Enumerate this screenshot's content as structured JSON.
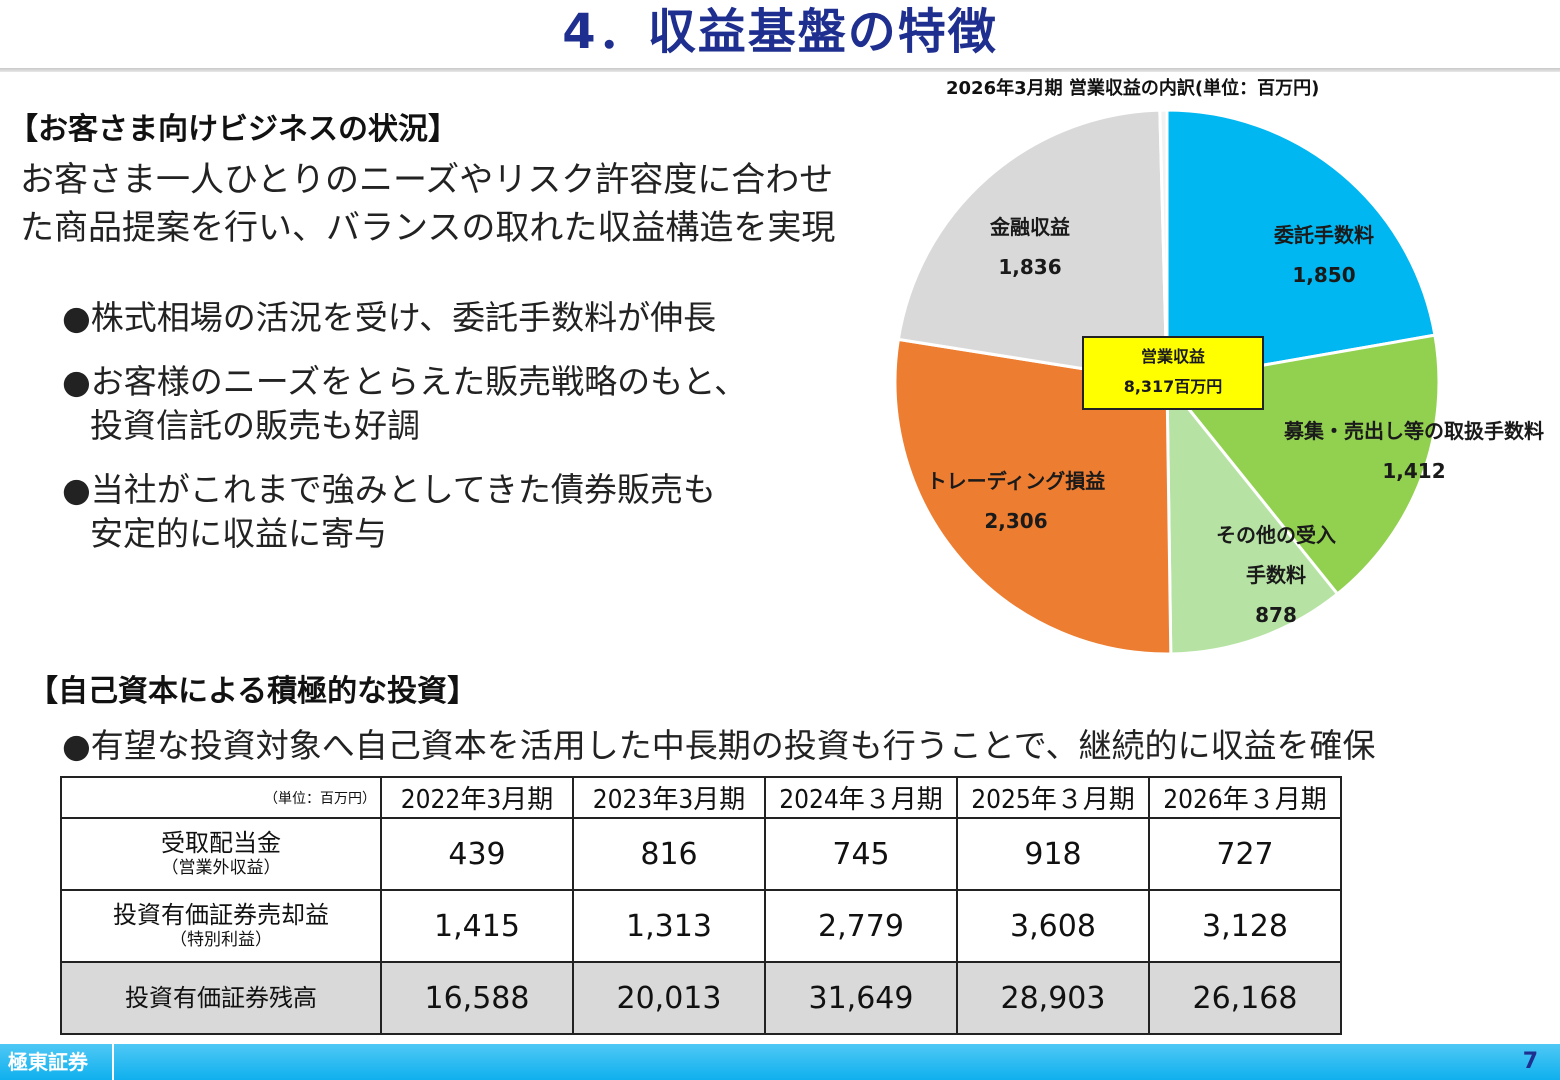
{
  "title": "4．収益基盤の特徴",
  "customer_section": {
    "heading": "【お客さま向けビジネスの状況】",
    "lead_line1": "お客さま一人ひとりのニーズやリスク許容度に合わせ",
    "lead_line2": "た商品提案を行い、バランスの取れた収益構造を実現",
    "bullets": [
      {
        "line1": "●株式相場の活況を受け、委託手数料が伸長",
        "line2": ""
      },
      {
        "line1": "●お客様のニーズをとらえた販売戦略のもと、",
        "line2": "投資信託の販売も好調"
      },
      {
        "line1": "●当社がこれまで強みとしてきた債券販売も",
        "line2": "安定的に収益に寄与"
      }
    ]
  },
  "chart_data": {
    "type": "pie",
    "title": "2026年3月期 営業収益の内訳(単位：百万円)",
    "center_label": "営業収益",
    "center_value": "8,317百万円",
    "slices": [
      {
        "label": "委託手数料",
        "value": 1850,
        "value_text": "1,850",
        "color": "#00b7f1"
      },
      {
        "label": "募集・売出し等の取扱手数料",
        "value": 1412,
        "value_text": "1,412",
        "color": "#92d050"
      },
      {
        "label": "その他の受入手数料",
        "label_line1": "その他の受入",
        "label_line2": "手数料",
        "value": 878,
        "value_text": "878",
        "color": "#b6e3a3"
      },
      {
        "label": "トレーディング損益",
        "value": 2306,
        "value_text": "2,306",
        "color": "#ed7d31"
      },
      {
        "label": "金融収益",
        "value": 1836,
        "value_text": "1,836",
        "color": "#d9d9d9"
      },
      {
        "label": "",
        "value": 35,
        "value_text": "",
        "color": "#f2f2f2"
      }
    ]
  },
  "investment_section": {
    "heading": "【自己資本による積極的な投資】",
    "bullet": "●有望な投資対象へ自己資本を活用した中長期の投資も行うことで、継続的に収益を確保"
  },
  "table": {
    "unit": "（単位：百万円）",
    "columns": [
      "2022年3月期",
      "2023年3月期",
      "2024年３月期",
      "2025年３月期",
      "2026年３月期"
    ],
    "rows": [
      {
        "label": "受取配当金",
        "sub": "（営業外収益）",
        "values": [
          "439",
          "816",
          "745",
          "918",
          "727"
        ]
      },
      {
        "label": "投資有価証券売却益",
        "sub": "（特別利益）",
        "values": [
          "1,415",
          "1,313",
          "2,779",
          "3,608",
          "3,128"
        ]
      },
      {
        "label": "投資有価証券残高",
        "sub": "",
        "values": [
          "16,588",
          "20,013",
          "31,649",
          "28,903",
          "26,168"
        ]
      }
    ]
  },
  "footer": {
    "company": "極東証券",
    "page": "7"
  }
}
